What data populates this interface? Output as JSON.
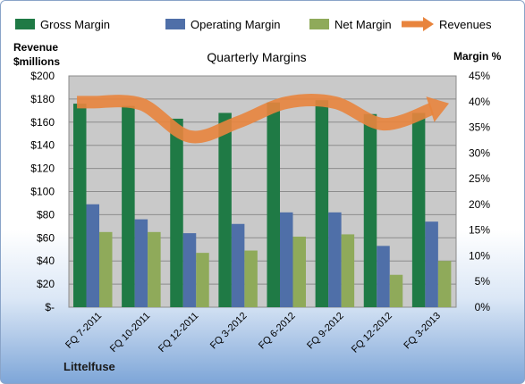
{
  "chart_data": {
    "type": "bar",
    "title": "Quarterly Margins",
    "company": "Littelfuse",
    "categories": [
      "FQ 7-2011",
      "FQ 10-2011",
      "FQ 12-2011",
      "FQ 3-2012",
      "FQ 6-2012",
      "FQ 9-2012",
      "FQ 12-2012",
      "FQ 3-2013"
    ],
    "series": [
      {
        "name": "Gross Margin",
        "axis": "left",
        "color": "#1f7a45",
        "values": [
          176,
          174,
          163,
          168,
          177,
          179,
          167,
          168
        ]
      },
      {
        "name": "Operating Margin",
        "axis": "left",
        "color": "#4f6fa8",
        "values": [
          89,
          76,
          64,
          72,
          82,
          82,
          53,
          74
        ]
      },
      {
        "name": "Net Margin",
        "axis": "left",
        "color": "#8faa5a",
        "values": [
          65,
          65,
          47,
          49,
          61,
          63,
          28,
          40
        ]
      },
      {
        "name": "Revenues",
        "axis": "right",
        "type": "line",
        "color": "#e8843d",
        "values": [
          39.9,
          39.5,
          33.2,
          36.0,
          39.8,
          39.8,
          35.6,
          38.6
        ]
      }
    ],
    "ylabel_left": "Revenue\n$millions",
    "ylabel_left_lines": [
      "Revenue",
      "$millions"
    ],
    "ylabel_right": "Margin %",
    "ylim_left": [
      0,
      200
    ],
    "ylim_right": [
      0,
      45
    ],
    "yticks_left": [
      "$-",
      "$20",
      "$40",
      "$60",
      "$80",
      "$100",
      "$120",
      "$140",
      "$160",
      "$180",
      "$200"
    ],
    "yticks_right": [
      "0%",
      "5%",
      "10%",
      "15%",
      "20%",
      "25%",
      "30%",
      "35%",
      "40%",
      "45%"
    ],
    "grid": true,
    "legend": "top"
  }
}
